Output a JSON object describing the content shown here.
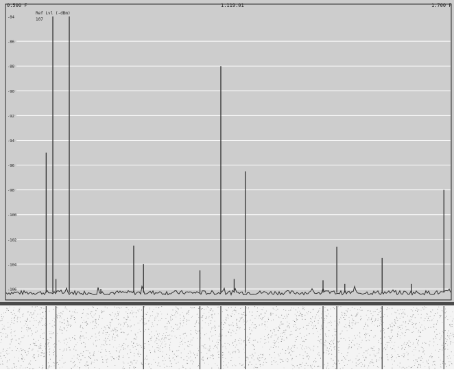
{
  "chart_data": {
    "type": "line",
    "header": {
      "freq_start": "0.500 F",
      "freq_center": "1.119.01",
      "freq_end": "1.700 F"
    },
    "ref_label": "Ref Lvl (-dBm)",
    "ref_value": "107",
    "yticks": [
      "-84",
      "-86",
      "-88",
      "-90",
      "-92",
      "-94",
      "-96",
      "-98",
      "-100",
      "-102",
      "-104",
      "-106"
    ],
    "ylim": [
      -106.5,
      -83.5
    ],
    "x_range": [
      0,
      1
    ],
    "grid": true,
    "noise_floor": -106.3,
    "peaks": [
      {
        "x": 0.09,
        "y": -95.0
      },
      {
        "x": 0.105,
        "y": -84.0
      },
      {
        "x": 0.112,
        "y": -105.2
      },
      {
        "x": 0.142,
        "y": -84.0
      },
      {
        "x": 0.213,
        "y": -106.0
      },
      {
        "x": 0.287,
        "y": -102.5
      },
      {
        "x": 0.309,
        "y": -104.0
      },
      {
        "x": 0.436,
        "y": -104.5
      },
      {
        "x": 0.483,
        "y": -88.0
      },
      {
        "x": 0.513,
        "y": -105.2
      },
      {
        "x": 0.538,
        "y": -96.5
      },
      {
        "x": 0.713,
        "y": -105.3
      },
      {
        "x": 0.744,
        "y": -102.6
      },
      {
        "x": 0.762,
        "y": -105.6
      },
      {
        "x": 0.846,
        "y": -103.5
      },
      {
        "x": 0.912,
        "y": -105.6
      },
      {
        "x": 0.985,
        "y": -98.0
      }
    ],
    "waterfall_lines": [
      0.09,
      0.112,
      0.309,
      0.436,
      0.483,
      0.538,
      0.713,
      0.744,
      0.846,
      0.985
    ]
  },
  "colors": {
    "plot_bg": "#cdcdcd",
    "gridline": "#ffffff",
    "trace": "#2f2f2f",
    "axis": "#222222",
    "waterfall_bg": "#f4f4f4",
    "waterfall_speckle": "#555555"
  }
}
